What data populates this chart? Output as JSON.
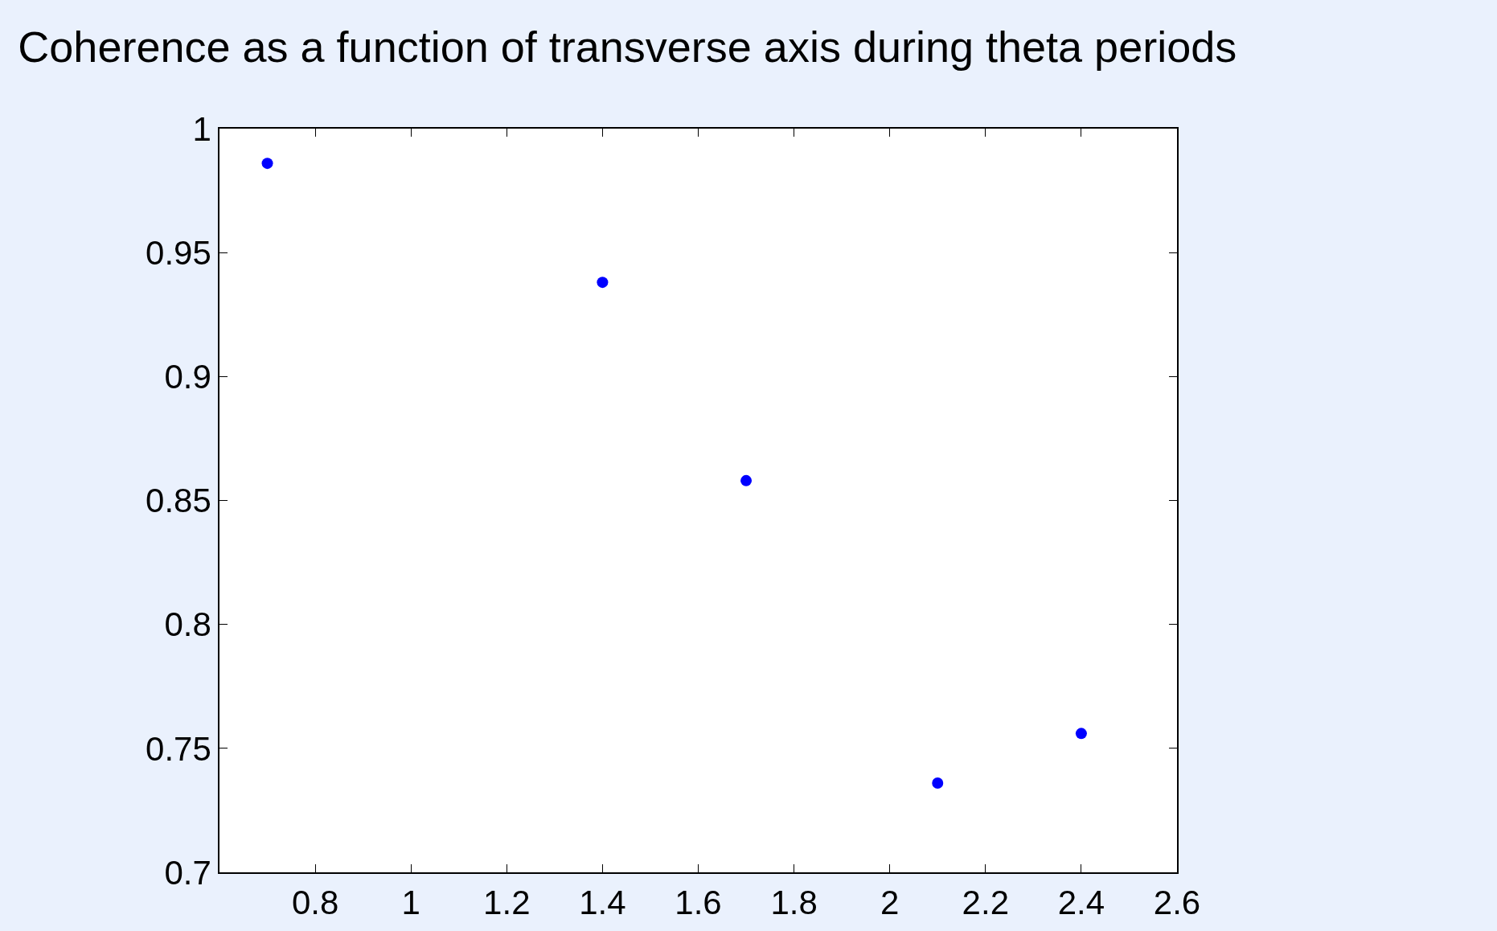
{
  "chart_data": {
    "type": "scatter",
    "title": "Coherence as a function of transverse axis during theta periods",
    "x": [
      0.7,
      1.4,
      1.7,
      2.1,
      2.4
    ],
    "series": [
      {
        "color": "#0000ff",
        "values": [
          0.986,
          0.938,
          0.858,
          0.736,
          0.756
        ]
      }
    ],
    "marker": "circle",
    "legend": false,
    "xlim": [
      0.6,
      2.6
    ],
    "xticks": [
      {
        "value": 0.6,
        "label": null
      },
      0.8,
      1,
      1.2,
      1.4,
      1.6,
      1.8,
      2,
      2.2,
      2.4,
      2.6
    ],
    "ylim": [
      0.7,
      1
    ],
    "yticks": [
      0.7,
      0.75,
      0.8,
      0.85,
      0.9,
      0.95,
      1
    ]
  }
}
